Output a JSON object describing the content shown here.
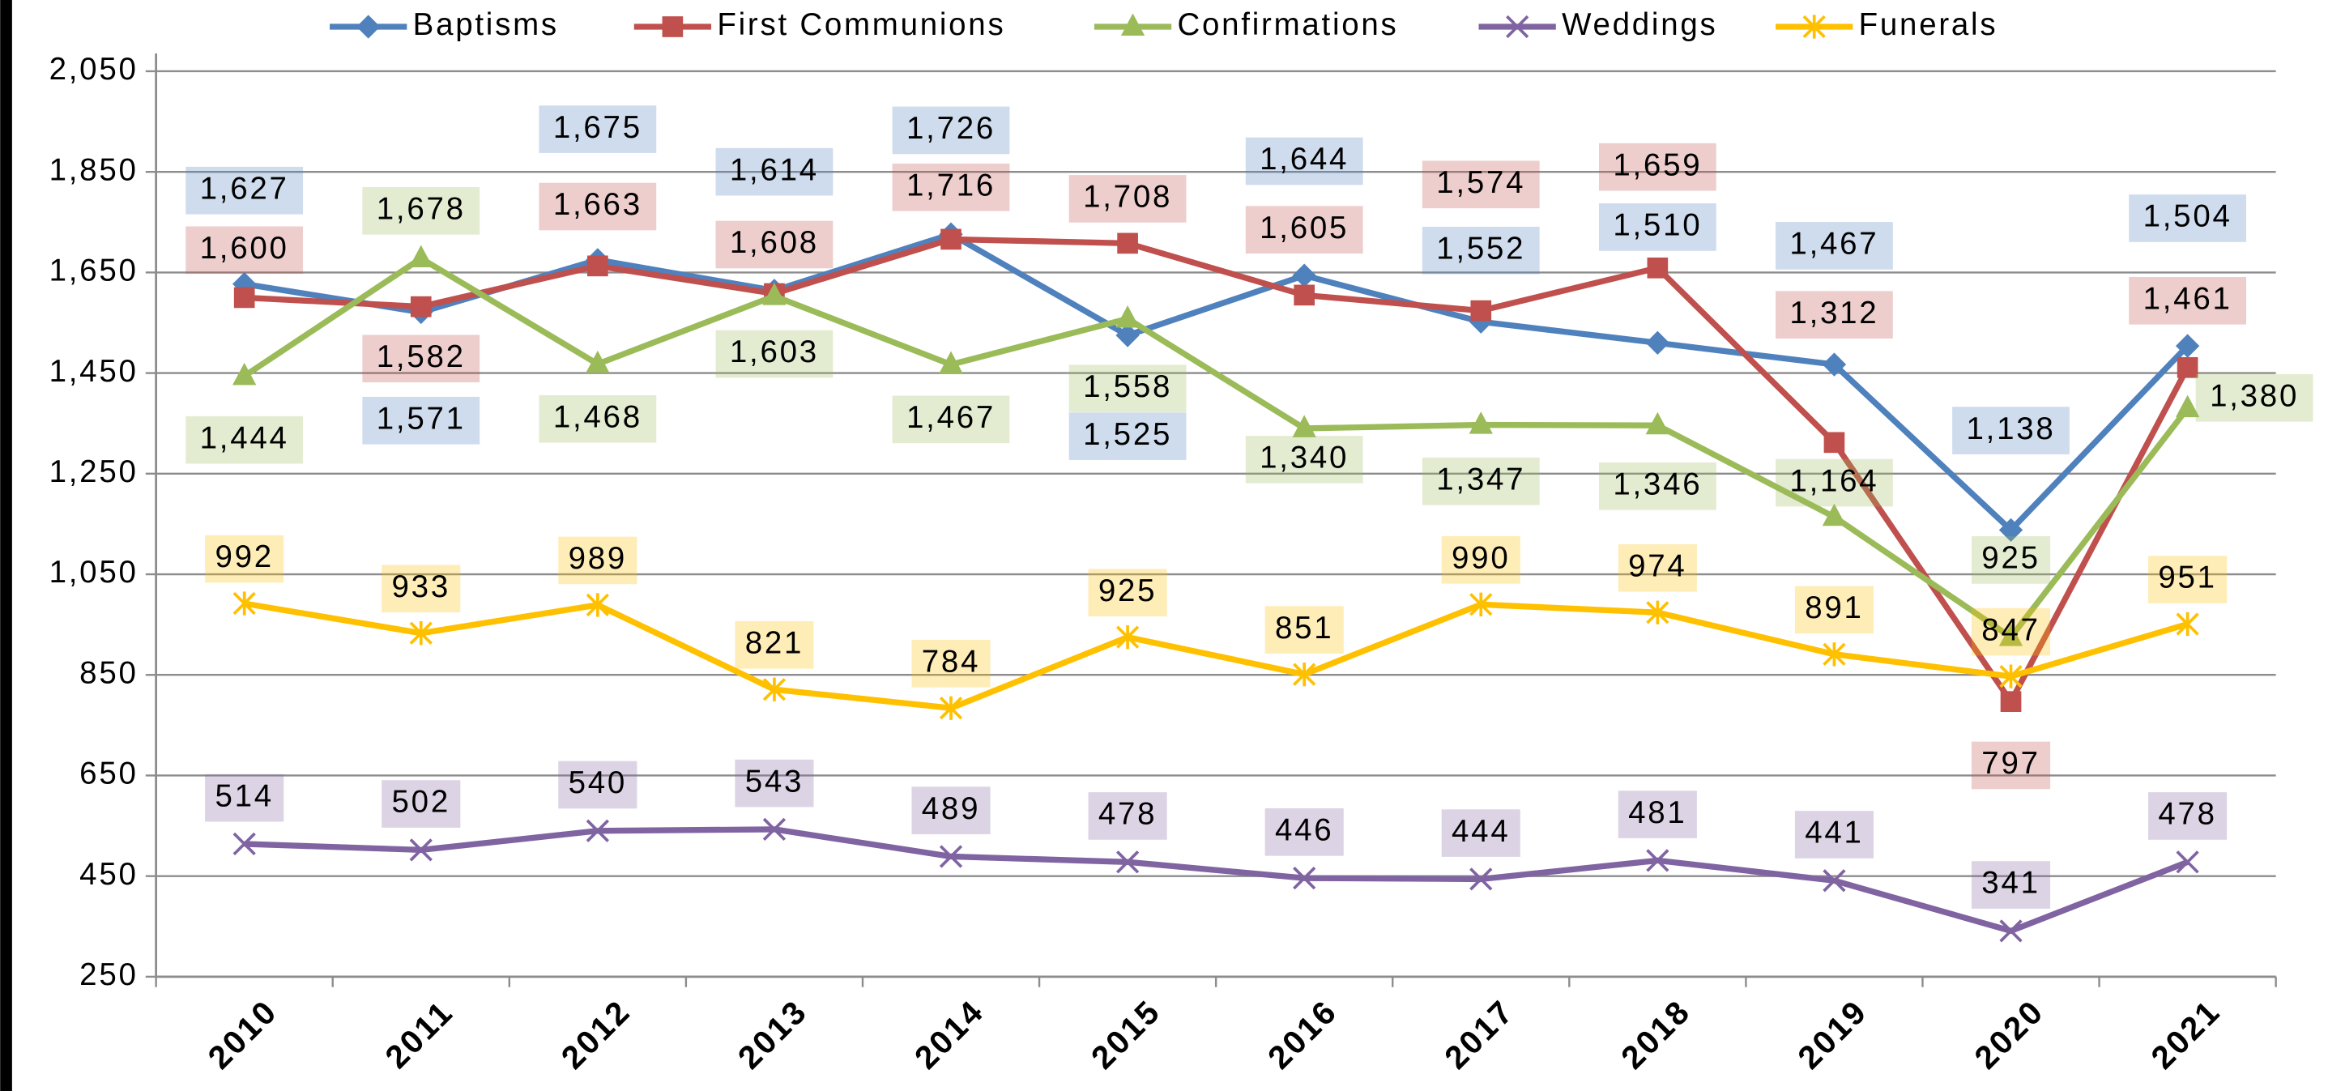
{
  "chart_data": {
    "type": "line",
    "categories": [
      "2010",
      "2011",
      "2012",
      "2013",
      "2014",
      "2015",
      "2016",
      "2017",
      "2018",
      "2019",
      "2020",
      "2021"
    ],
    "series": [
      {
        "name": "Baptisms",
        "color": "#4f81bd",
        "values": [
          1627,
          1571,
          1675,
          1614,
          1726,
          1525,
          1644,
          1552,
          1510,
          1467,
          1138,
          1504
        ],
        "value_labels": [
          "1,627",
          "1,571",
          "1,675",
          "1,614",
          "1,726",
          "1,525",
          "1,644",
          "1,552",
          "1,510",
          "1,467",
          "1,138",
          "1,504"
        ]
      },
      {
        "name": "First Communions",
        "color": "#c0504d",
        "values": [
          1600,
          1582,
          1663,
          1608,
          1716,
          1708,
          1605,
          1574,
          1659,
          1312,
          797,
          1461
        ],
        "value_labels": [
          "1,600",
          "1,582",
          "1,663",
          "1,608",
          "1,716",
          "1,708",
          "1,605",
          "1,574",
          "1,659",
          "1,312",
          "797",
          "1,461"
        ]
      },
      {
        "name": "Confirmations",
        "color": "#9bbb59",
        "values": [
          1444,
          1678,
          1468,
          1603,
          1467,
          1558,
          1340,
          1347,
          1346,
          1164,
          925,
          1380
        ],
        "value_labels": [
          "1,444",
          "1,678",
          "1,468",
          "1,603",
          "1,467",
          "1,558",
          "1,340",
          "1,347",
          "1,346",
          "1,164",
          "925",
          "1,380"
        ]
      },
      {
        "name": "Weddings",
        "color": "#8064a2",
        "values": [
          514,
          502,
          540,
          543,
          489,
          478,
          446,
          444,
          481,
          441,
          341,
          478
        ]
      },
      {
        "name": "Funerals",
        "color": "#ffc000",
        "values": [
          992,
          933,
          989,
          821,
          784,
          925,
          851,
          990,
          974,
          891,
          847,
          951
        ]
      }
    ],
    "ylim": [
      250,
      2050
    ],
    "yticks": [
      250,
      450,
      650,
      850,
      {
        "value": 1050,
        "label": "1,050"
      },
      {
        "value": 1250,
        "label": "1,250"
      },
      {
        "value": 1450,
        "label": "1,450"
      },
      {
        "value": 1650,
        "label": "1,650"
      },
      {
        "value": 1850,
        "label": "1,850"
      },
      {
        "value": 2050,
        "label": "2,050"
      }
    ],
    "grid": true,
    "legend": "top"
  }
}
